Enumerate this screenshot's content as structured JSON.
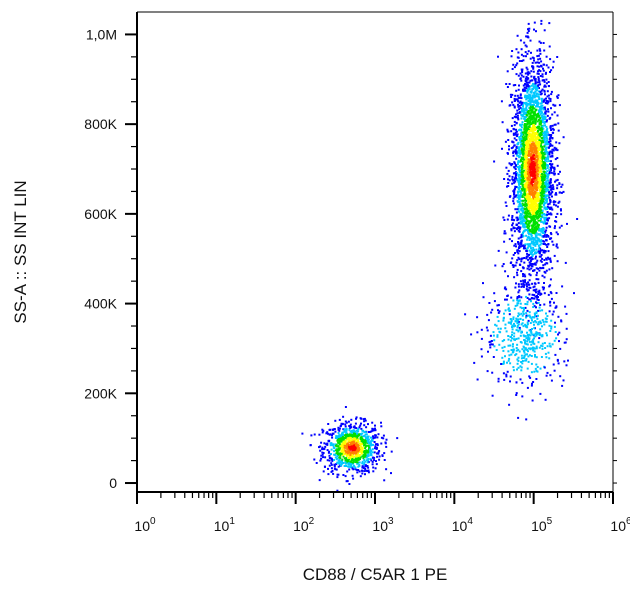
{
  "chart_data": {
    "type": "scatter",
    "subtype": "flow-cytometry-density-dot-plot",
    "xlabel": "CD88 / C5AR 1 PE",
    "ylabel": "SS-A :: SS INT LIN",
    "x_scale": "log",
    "x_range": [
      1,
      1000000
    ],
    "y_scale": "linear",
    "y_range": [
      -20000,
      1050000
    ],
    "x_ticks": [
      {
        "value": 1,
        "base": "10",
        "exp": "0"
      },
      {
        "value": 10,
        "base": "10",
        "exp": "1"
      },
      {
        "value": 100,
        "base": "10",
        "exp": "2"
      },
      {
        "value": 1000,
        "base": "10",
        "exp": "3"
      },
      {
        "value": 10000,
        "base": "10",
        "exp": "4"
      },
      {
        "value": 100000,
        "base": "10",
        "exp": "5"
      },
      {
        "value": 1000000,
        "base": "10",
        "exp": "6"
      }
    ],
    "y_ticks": [
      {
        "value": 0,
        "label": "0"
      },
      {
        "value": 200000,
        "label": "200K"
      },
      {
        "value": 400000,
        "label": "400K"
      },
      {
        "value": 600000,
        "label": "600K"
      },
      {
        "value": 800000,
        "label": "800K"
      },
      {
        "value": 1000000,
        "label": "1,0M"
      }
    ],
    "populations": [
      {
        "x_center": 500,
        "y_center": 80000,
        "x_spread_log": 0.18,
        "y_spread": 28000,
        "count": 900
      },
      {
        "x_center": 95000,
        "y_center": 700000,
        "x_spread_log": 0.13,
        "y_spread": 120000,
        "count": 3200
      },
      {
        "x_center": 75000,
        "y_center": 330000,
        "x_spread_log": 0.25,
        "y_spread": 55000,
        "count": 500
      }
    ],
    "density_colors": [
      "#0000ff",
      "#00c8ff",
      "#00e000",
      "#ffff00",
      "#ff8000",
      "#ff0000"
    ],
    "grid": false,
    "legend": "none"
  }
}
